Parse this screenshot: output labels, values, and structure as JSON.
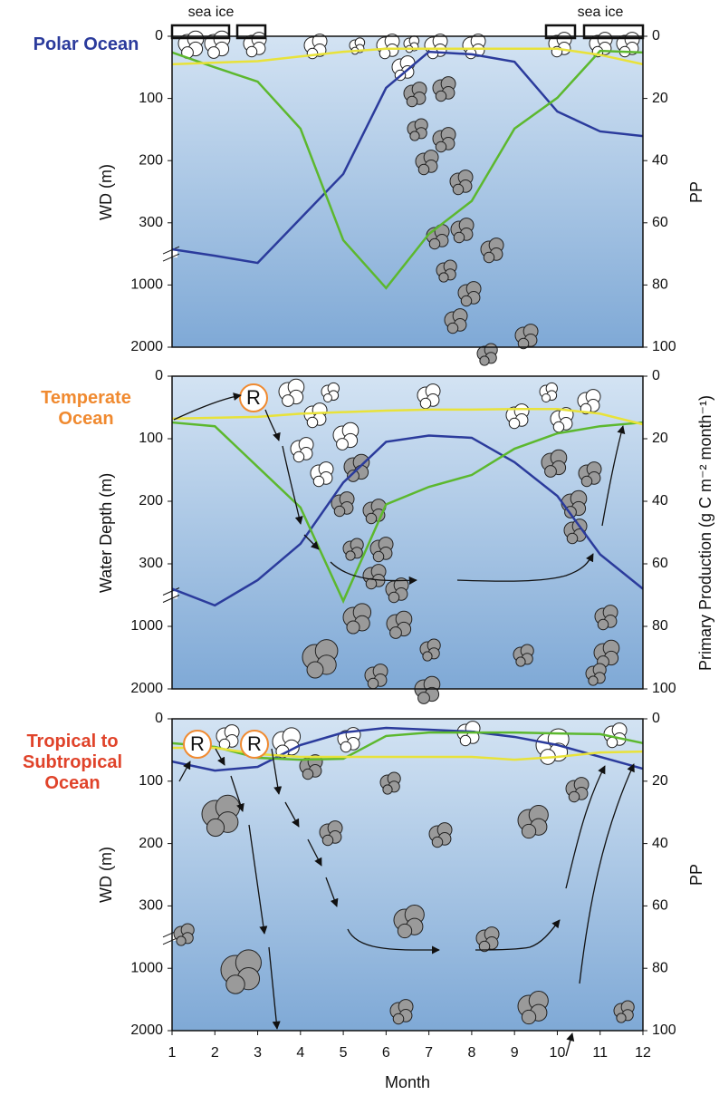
{
  "chart_data": [
    {
      "type": "line",
      "title": "Polar Ocean",
      "title_color": "#2b3b9c",
      "ylabel": "WD (m)",
      "y2label": "PP",
      "x": [
        1,
        2,
        3,
        4,
        5,
        6,
        7,
        8,
        9,
        10,
        11,
        12
      ],
      "xlim": [
        1,
        12
      ],
      "ylim": [
        0,
        2000
      ],
      "yticks": [
        0,
        100,
        200,
        300,
        1000,
        2000
      ],
      "y2lim": [
        0,
        100
      ],
      "y2ticks": [
        0,
        20,
        40,
        60,
        80,
        100
      ],
      "annotations": [
        "sea ice",
        "sea ice"
      ],
      "series": [
        {
          "color": "#2b3b9c",
          "axis": "y2",
          "values": [
            68.5,
            70.6,
            72.9,
            58.6,
            44.3,
            16.6,
            5,
            5.8,
            8.2,
            24.2,
            30.6,
            32.1
          ]
        },
        {
          "color": "#5cb82e",
          "axis": "y2",
          "values": [
            5.2,
            10,
            14.6,
            29.7,
            65.6,
            81,
            63.6,
            53,
            29.7,
            19.8,
            4.7,
            5.2
          ]
        },
        {
          "color": "#e8e23a",
          "axis": "y2",
          "values": [
            9,
            8.5,
            8,
            6.5,
            5,
            4,
            4,
            4,
            4,
            4,
            6,
            9
          ]
        }
      ]
    },
    {
      "type": "line",
      "title": "Temperate Ocean",
      "title_color": "#f08a30",
      "ylabel": "Water Depth (m)",
      "y2label": "Primary Production (g C m⁻² month⁻¹)",
      "x": [
        1,
        2,
        3,
        4,
        5,
        6,
        7,
        8,
        9,
        10,
        11,
        12
      ],
      "xlim": [
        1,
        12
      ],
      "ylim": [
        0,
        2000
      ],
      "yticks": [
        0,
        100,
        200,
        300,
        1000,
        2000
      ],
      "y2lim": [
        0,
        100
      ],
      "y2ticks": [
        0,
        20,
        40,
        60,
        80,
        100
      ],
      "annotations": [
        "R"
      ],
      "series": [
        {
          "color": "#2b3b9c",
          "axis": "y2",
          "values": [
            68,
            73.3,
            65.2,
            53.6,
            34,
            21,
            19,
            19.7,
            27.5,
            38.3,
            57,
            68
          ]
        },
        {
          "color": "#5cb82e",
          "axis": "y2",
          "values": [
            14.8,
            16,
            29,
            42,
            71.9,
            41,
            35.4,
            31.6,
            23.2,
            18.3,
            16,
            14.8
          ]
        },
        {
          "color": "#e8e23a",
          "axis": "y2",
          "values": [
            13.6,
            13.3,
            13,
            12,
            11.5,
            11,
            10.7,
            10.7,
            10.5,
            10.5,
            12,
            15.4
          ]
        }
      ]
    },
    {
      "type": "line",
      "title": "Tropical to Subtropical Ocean",
      "title_color": "#e0432a",
      "ylabel": "WD (m)",
      "y2label": "PP",
      "xlabel": "Month",
      "x": [
        1,
        2,
        3,
        4,
        5,
        6,
        7,
        8,
        9,
        10,
        11,
        12
      ],
      "xlim": [
        1,
        12
      ],
      "xticks": [
        1,
        2,
        3,
        4,
        5,
        6,
        7,
        8,
        9,
        10,
        11,
        12
      ],
      "ylim": [
        0,
        2000
      ],
      "yticks": [
        0,
        100,
        200,
        300,
        1000,
        2000
      ],
      "y2lim": [
        0,
        100
      ],
      "y2ticks": [
        0,
        20,
        40,
        60,
        80,
        100
      ],
      "annotations": [
        "R",
        "R"
      ],
      "series": [
        {
          "color": "#2b3b9c",
          "axis": "y2",
          "values": [
            13.7,
            16.6,
            15.4,
            8.4,
            4.4,
            2.9,
            3.5,
            4.1,
            5.8,
            8.4,
            12.2,
            16
          ]
        },
        {
          "color": "#5cb82e",
          "axis": "y2",
          "values": [
            7.8,
            9,
            12.5,
            13.1,
            12.8,
            5.5,
            4.4,
            4.4,
            4.4,
            4.7,
            4.9,
            7.8
          ]
        },
        {
          "color": "#e8e23a",
          "axis": "y2",
          "values": [
            9.3,
            9.3,
            11.3,
            12.2,
            12.2,
            12.2,
            12.2,
            12.2,
            13.1,
            12.2,
            10.8,
            10.5
          ]
        }
      ]
    }
  ]
}
